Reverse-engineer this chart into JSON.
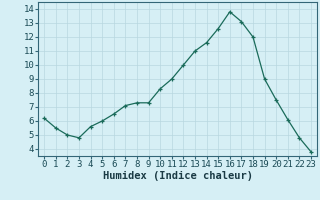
{
  "x": [
    0,
    1,
    2,
    3,
    4,
    5,
    6,
    7,
    8,
    9,
    10,
    11,
    12,
    13,
    14,
    15,
    16,
    17,
    18,
    19,
    20,
    21,
    22,
    23
  ],
  "y": [
    6.2,
    5.5,
    5.0,
    4.8,
    5.6,
    6.0,
    6.5,
    7.1,
    7.3,
    7.3,
    8.3,
    9.0,
    10.0,
    11.0,
    11.6,
    12.6,
    13.8,
    13.1,
    12.0,
    9.0,
    7.5,
    6.1,
    4.8,
    3.8
  ],
  "line_color": "#1a6b5a",
  "marker": "+",
  "bg_color": "#d6eff5",
  "grid_color": "#b8d8e0",
  "xlabel": "Humidex (Indice chaleur)",
  "xlabel_fontsize": 7.5,
  "tick_fontsize": 6.5,
  "ylim": [
    3.5,
    14.5
  ],
  "xlim": [
    -0.5,
    23.5
  ],
  "yticks": [
    4,
    5,
    6,
    7,
    8,
    9,
    10,
    11,
    12,
    13,
    14
  ],
  "xticks": [
    0,
    1,
    2,
    3,
    4,
    5,
    6,
    7,
    8,
    9,
    10,
    11,
    12,
    13,
    14,
    15,
    16,
    17,
    18,
    19,
    20,
    21,
    22,
    23
  ],
  "spine_color": "#336677",
  "tick_color": "#1a4a55",
  "xlabel_color": "#1a3a44"
}
